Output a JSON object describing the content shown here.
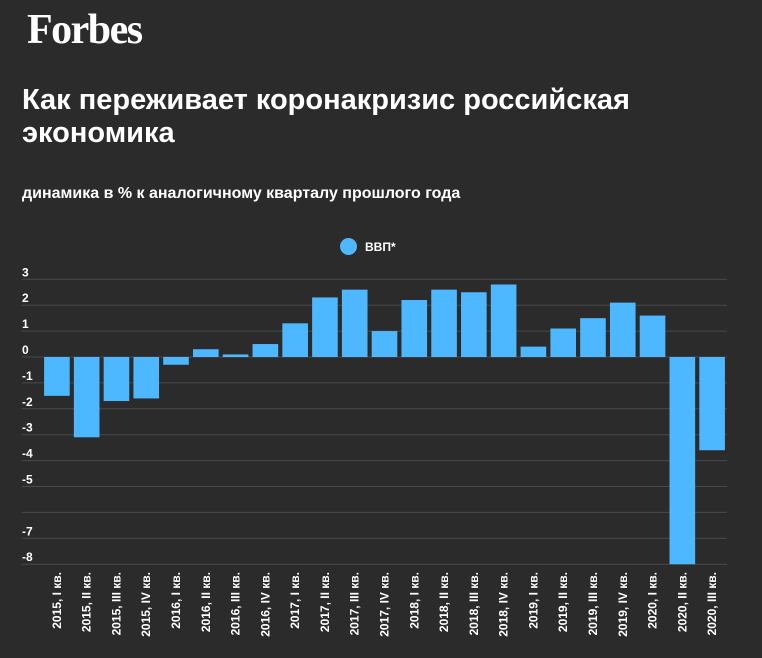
{
  "brand": {
    "logo": "Forbes"
  },
  "header": {
    "title": "Как переживает коронакризис российская экономика",
    "subtitle": "динамика в % к аналогичному кварталу прошлого года"
  },
  "colors": {
    "background": "#2b2b2b",
    "bar": "#4db8ff",
    "grid": "#4a4a4a",
    "text": "#ffffff"
  },
  "chart_data": {
    "type": "bar",
    "title": "Как переживает коронакризис российская экономика",
    "subtitle": "динамика в % к аналогичному кварталу прошлого года",
    "xlabel": "",
    "ylabel": "",
    "ylim": [
      -8,
      3
    ],
    "yticks": [
      3,
      2,
      1,
      0,
      -1,
      -2,
      -3,
      -4,
      -5,
      -7,
      -8
    ],
    "grid": true,
    "legend": "top-center",
    "categories": [
      "2015, I кв.",
      "2015, II кв.",
      "2015, III кв.",
      "2015, IV кв.",
      "2016, I кв.",
      "2016, II кв.",
      "2016, III кв.",
      "2016, IV кв.",
      "2017, I кв.",
      "2017, II кв.",
      "2017, III кв.",
      "2017, IV кв.",
      "2018, I кв.",
      "2018, II кв.",
      "2018, III кв.",
      "2018, IV кв.",
      "2019, I кв.",
      "2019, II кв.",
      "2019, III кв.",
      "2019, IV кв.",
      "2020, I кв.",
      "2020, II кв.",
      "2020, III кв."
    ],
    "series": [
      {
        "name": "ВВП*",
        "values": [
          -1.5,
          -3.1,
          -1.7,
          -1.6,
          -0.3,
          0.3,
          0.1,
          0.5,
          1.3,
          2.3,
          2.6,
          1.0,
          2.2,
          2.6,
          2.5,
          2.8,
          0.4,
          1.1,
          1.5,
          2.1,
          1.6,
          -8.0,
          -3.6
        ]
      }
    ]
  }
}
